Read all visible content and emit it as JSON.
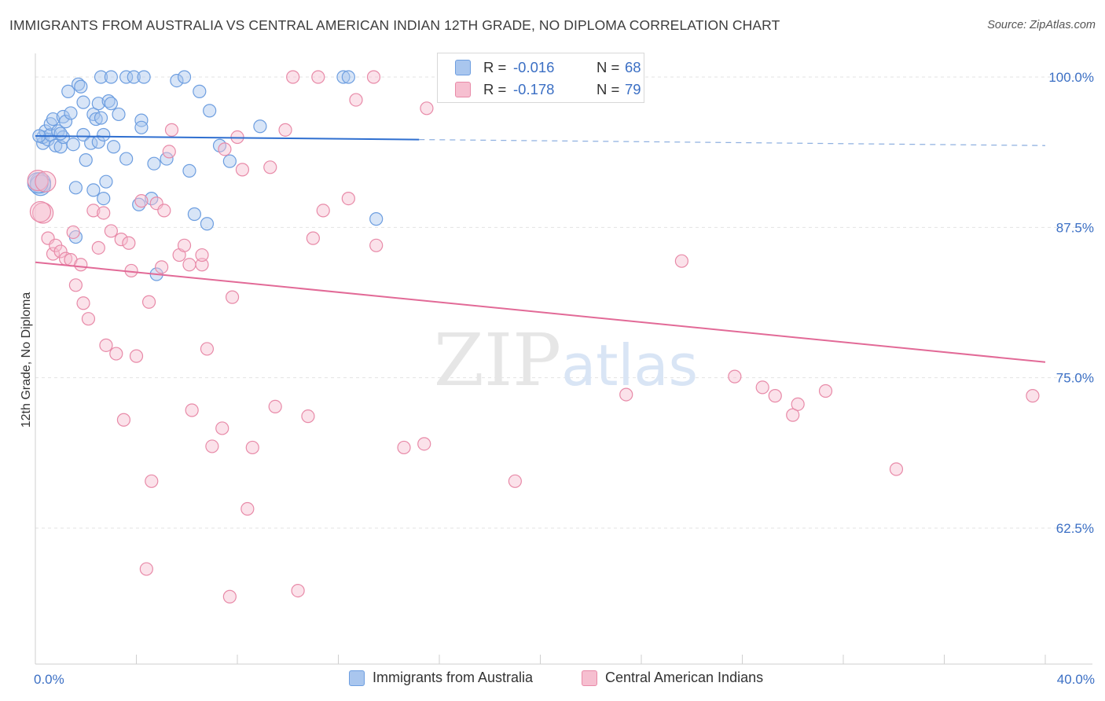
{
  "title": "IMMIGRANTS FROM AUSTRALIA VS CENTRAL AMERICAN INDIAN 12TH GRADE, NO DIPLOMA CORRELATION CHART",
  "source": "Source: ZipAtlas.com",
  "watermark": "ZIPatlas",
  "colors": {
    "blue": "#6d9ee0",
    "blue_fill": "#a9c6ee",
    "pink": "#e88aa8",
    "pink_fill": "#f6bfd0",
    "blue_line": "#2f6fd0",
    "pink_line": "#e26a97",
    "tick_text": "#3b6fc4"
  },
  "legend": {
    "rows": [
      {
        "r_label": "R =",
        "r_value": "-0.016",
        "n_label": "N =",
        "n_value": "68"
      },
      {
        "r_label": "R =",
        "r_value": "-0.178",
        "n_label": "N =",
        "n_value": "79"
      }
    ]
  },
  "chart_data": {
    "type": "scatter",
    "title": "IMMIGRANTS FROM AUSTRALIA VS CENTRAL AMERICAN INDIAN 12TH GRADE, NO DIPLOMA CORRELATION CHART",
    "xlabel": "",
    "ylabel": "12th Grade, No Diploma",
    "xlim": [
      0,
      40
    ],
    "ylim": [
      52.5,
      101.5
    ],
    "x_tick_labels": [
      "0.0%",
      "40.0%"
    ],
    "y_ticks": [
      62.5,
      75.0,
      87.5,
      100.0
    ],
    "y_tick_labels": [
      "62.5%",
      "75.0%",
      "87.5%",
      "100.0%"
    ],
    "grid": true,
    "legend_position": "top-center",
    "series": [
      {
        "name": "Immigrants from Australia",
        "r": -0.016,
        "n": 68,
        "trend": {
          "x0": 0,
          "y0": 95.1,
          "x1": 15.2,
          "y1": 94.8,
          "dashed_to_x": 40,
          "dashed_to_y": 94.3
        },
        "points": [
          [
            0.2,
            91.2
          ],
          [
            0.2,
            91.0
          ],
          [
            0.3,
            94.5
          ],
          [
            0.3,
            95.0
          ],
          [
            0.4,
            95.5
          ],
          [
            0.5,
            94.8
          ],
          [
            0.6,
            95.2
          ],
          [
            0.6,
            96.1
          ],
          [
            0.7,
            96.5
          ],
          [
            0.8,
            94.3
          ],
          [
            0.9,
            95.5
          ],
          [
            1.0,
            94.2
          ],
          [
            1.1,
            96.7
          ],
          [
            1.1,
            95.0
          ],
          [
            1.2,
            96.3
          ],
          [
            1.3,
            98.8
          ],
          [
            1.4,
            97.0
          ],
          [
            1.5,
            94.4
          ],
          [
            1.6,
            90.8
          ],
          [
            1.6,
            86.7
          ],
          [
            1.7,
            99.4
          ],
          [
            1.8,
            99.2
          ],
          [
            1.9,
            95.2
          ],
          [
            1.9,
            97.9
          ],
          [
            2.0,
            93.1
          ],
          [
            2.2,
            94.5
          ],
          [
            2.3,
            96.9
          ],
          [
            2.3,
            90.6
          ],
          [
            2.4,
            96.5
          ],
          [
            2.5,
            94.6
          ],
          [
            2.5,
            97.8
          ],
          [
            2.6,
            96.6
          ],
          [
            2.6,
            100.0
          ],
          [
            2.7,
            95.2
          ],
          [
            2.7,
            89.9
          ],
          [
            2.8,
            91.3
          ],
          [
            2.9,
            98.0
          ],
          [
            3.0,
            97.8
          ],
          [
            3.0,
            100.0
          ],
          [
            3.1,
            94.2
          ],
          [
            3.3,
            96.9
          ],
          [
            3.6,
            93.2
          ],
          [
            3.6,
            100.0
          ],
          [
            3.9,
            100.0
          ],
          [
            4.1,
            89.4
          ],
          [
            4.2,
            96.4
          ],
          [
            4.2,
            95.8
          ],
          [
            4.3,
            100.0
          ],
          [
            4.6,
            89.9
          ],
          [
            4.7,
            92.8
          ],
          [
            5.2,
            93.2
          ],
          [
            5.6,
            99.7
          ],
          [
            5.9,
            100.0
          ],
          [
            6.1,
            92.2
          ],
          [
            6.3,
            88.6
          ],
          [
            6.5,
            98.8
          ],
          [
            6.8,
            87.8
          ],
          [
            6.9,
            97.2
          ],
          [
            7.3,
            94.3
          ],
          [
            7.7,
            93.0
          ],
          [
            4.8,
            83.6
          ],
          [
            8.9,
            95.9
          ],
          [
            12.2,
            100.0
          ],
          [
            12.4,
            100.0
          ],
          [
            13.5,
            88.2
          ],
          [
            0.1,
            91.2
          ],
          [
            0.15,
            95.1
          ],
          [
            1.0,
            95.3
          ]
        ]
      },
      {
        "name": "Central American Indians",
        "r": -0.178,
        "n": 79,
        "trend": {
          "x0": 0,
          "y0": 84.6,
          "x1": 40,
          "y1": 76.3
        },
        "points": [
          [
            0.1,
            91.4
          ],
          [
            0.3,
            88.7
          ],
          [
            0.5,
            86.6
          ],
          [
            0.7,
            85.3
          ],
          [
            0.8,
            86.0
          ],
          [
            1.0,
            85.5
          ],
          [
            1.2,
            84.9
          ],
          [
            1.4,
            84.8
          ],
          [
            1.5,
            87.1
          ],
          [
            1.6,
            82.7
          ],
          [
            1.8,
            84.4
          ],
          [
            1.9,
            81.2
          ],
          [
            2.1,
            79.9
          ],
          [
            2.3,
            88.9
          ],
          [
            2.5,
            85.8
          ],
          [
            2.7,
            88.7
          ],
          [
            2.8,
            77.7
          ],
          [
            3.0,
            87.2
          ],
          [
            3.2,
            77.0
          ],
          [
            3.4,
            86.5
          ],
          [
            3.5,
            71.5
          ],
          [
            3.7,
            86.2
          ],
          [
            3.8,
            83.9
          ],
          [
            4.0,
            76.8
          ],
          [
            4.2,
            89.7
          ],
          [
            4.5,
            81.3
          ],
          [
            4.6,
            66.4
          ],
          [
            4.8,
            89.5
          ],
          [
            5.0,
            84.2
          ],
          [
            5.1,
            88.9
          ],
          [
            5.3,
            93.8
          ],
          [
            5.4,
            95.6
          ],
          [
            5.7,
            85.2
          ],
          [
            5.9,
            86.0
          ],
          [
            6.1,
            84.4
          ],
          [
            6.2,
            72.3
          ],
          [
            6.6,
            84.4
          ],
          [
            6.6,
            85.2
          ],
          [
            6.8,
            77.4
          ],
          [
            7.0,
            69.3
          ],
          [
            7.4,
            70.8
          ],
          [
            7.5,
            94.0
          ],
          [
            7.7,
            56.8
          ],
          [
            7.8,
            81.7
          ],
          [
            8.0,
            95.0
          ],
          [
            8.2,
            92.3
          ],
          [
            8.4,
            64.1
          ],
          [
            8.6,
            69.2
          ],
          [
            9.3,
            92.5
          ],
          [
            9.5,
            72.6
          ],
          [
            9.9,
            95.6
          ],
          [
            10.2,
            100.0
          ],
          [
            10.4,
            57.3
          ],
          [
            10.8,
            71.8
          ],
          [
            11.0,
            86.6
          ],
          [
            11.2,
            100.0
          ],
          [
            11.4,
            88.9
          ],
          [
            12.4,
            89.9
          ],
          [
            12.7,
            98.1
          ],
          [
            13.4,
            100.0
          ],
          [
            13.5,
            86.0
          ],
          [
            14.6,
            69.2
          ],
          [
            15.4,
            69.5
          ],
          [
            15.5,
            97.4
          ],
          [
            19.0,
            66.4
          ],
          [
            22.4,
            100.0
          ],
          [
            23.4,
            73.6
          ],
          [
            25.6,
            84.7
          ],
          [
            27.7,
            75.1
          ],
          [
            28.8,
            74.2
          ],
          [
            29.3,
            73.5
          ],
          [
            30.0,
            71.9
          ],
          [
            30.2,
            72.8
          ],
          [
            31.3,
            73.9
          ],
          [
            34.1,
            67.4
          ],
          [
            39.5,
            73.5
          ],
          [
            4.4,
            59.1
          ],
          [
            0.4,
            91.3
          ],
          [
            0.2,
            88.8
          ]
        ]
      }
    ]
  },
  "bottom_legend": [
    {
      "label": "Immigrants from Australia"
    },
    {
      "label": "Central American Indians"
    }
  ]
}
